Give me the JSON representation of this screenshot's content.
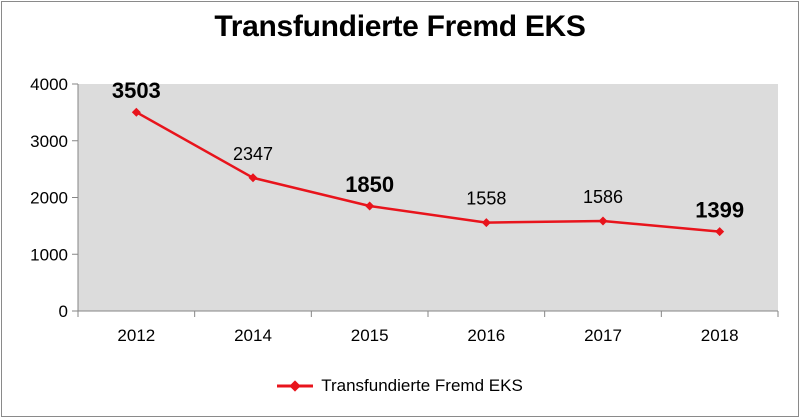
{
  "chart_data": {
    "type": "line",
    "title": "Transfundierte Fremd EKS",
    "xlabel": "",
    "ylabel": "",
    "categories": [
      "2012",
      "2014",
      "2015",
      "2016",
      "2017",
      "2018"
    ],
    "series": [
      {
        "name": "Transfundierte Fremd EKS",
        "values": [
          3503,
          2347,
          1850,
          1558,
          1586,
          1399
        ],
        "data_labels": [
          "3503",
          "2347",
          "1850",
          "1558",
          "1586",
          "1399"
        ],
        "bold_labels": [
          true,
          false,
          true,
          false,
          false,
          true
        ],
        "color": "#e8141c"
      }
    ],
    "ylim": [
      0,
      4000
    ],
    "yticks": [
      "0",
      "1000",
      "2000",
      "3000",
      "4000"
    ],
    "grid": false,
    "plot_background": "#dcdcdc",
    "legend_position": "bottom"
  }
}
